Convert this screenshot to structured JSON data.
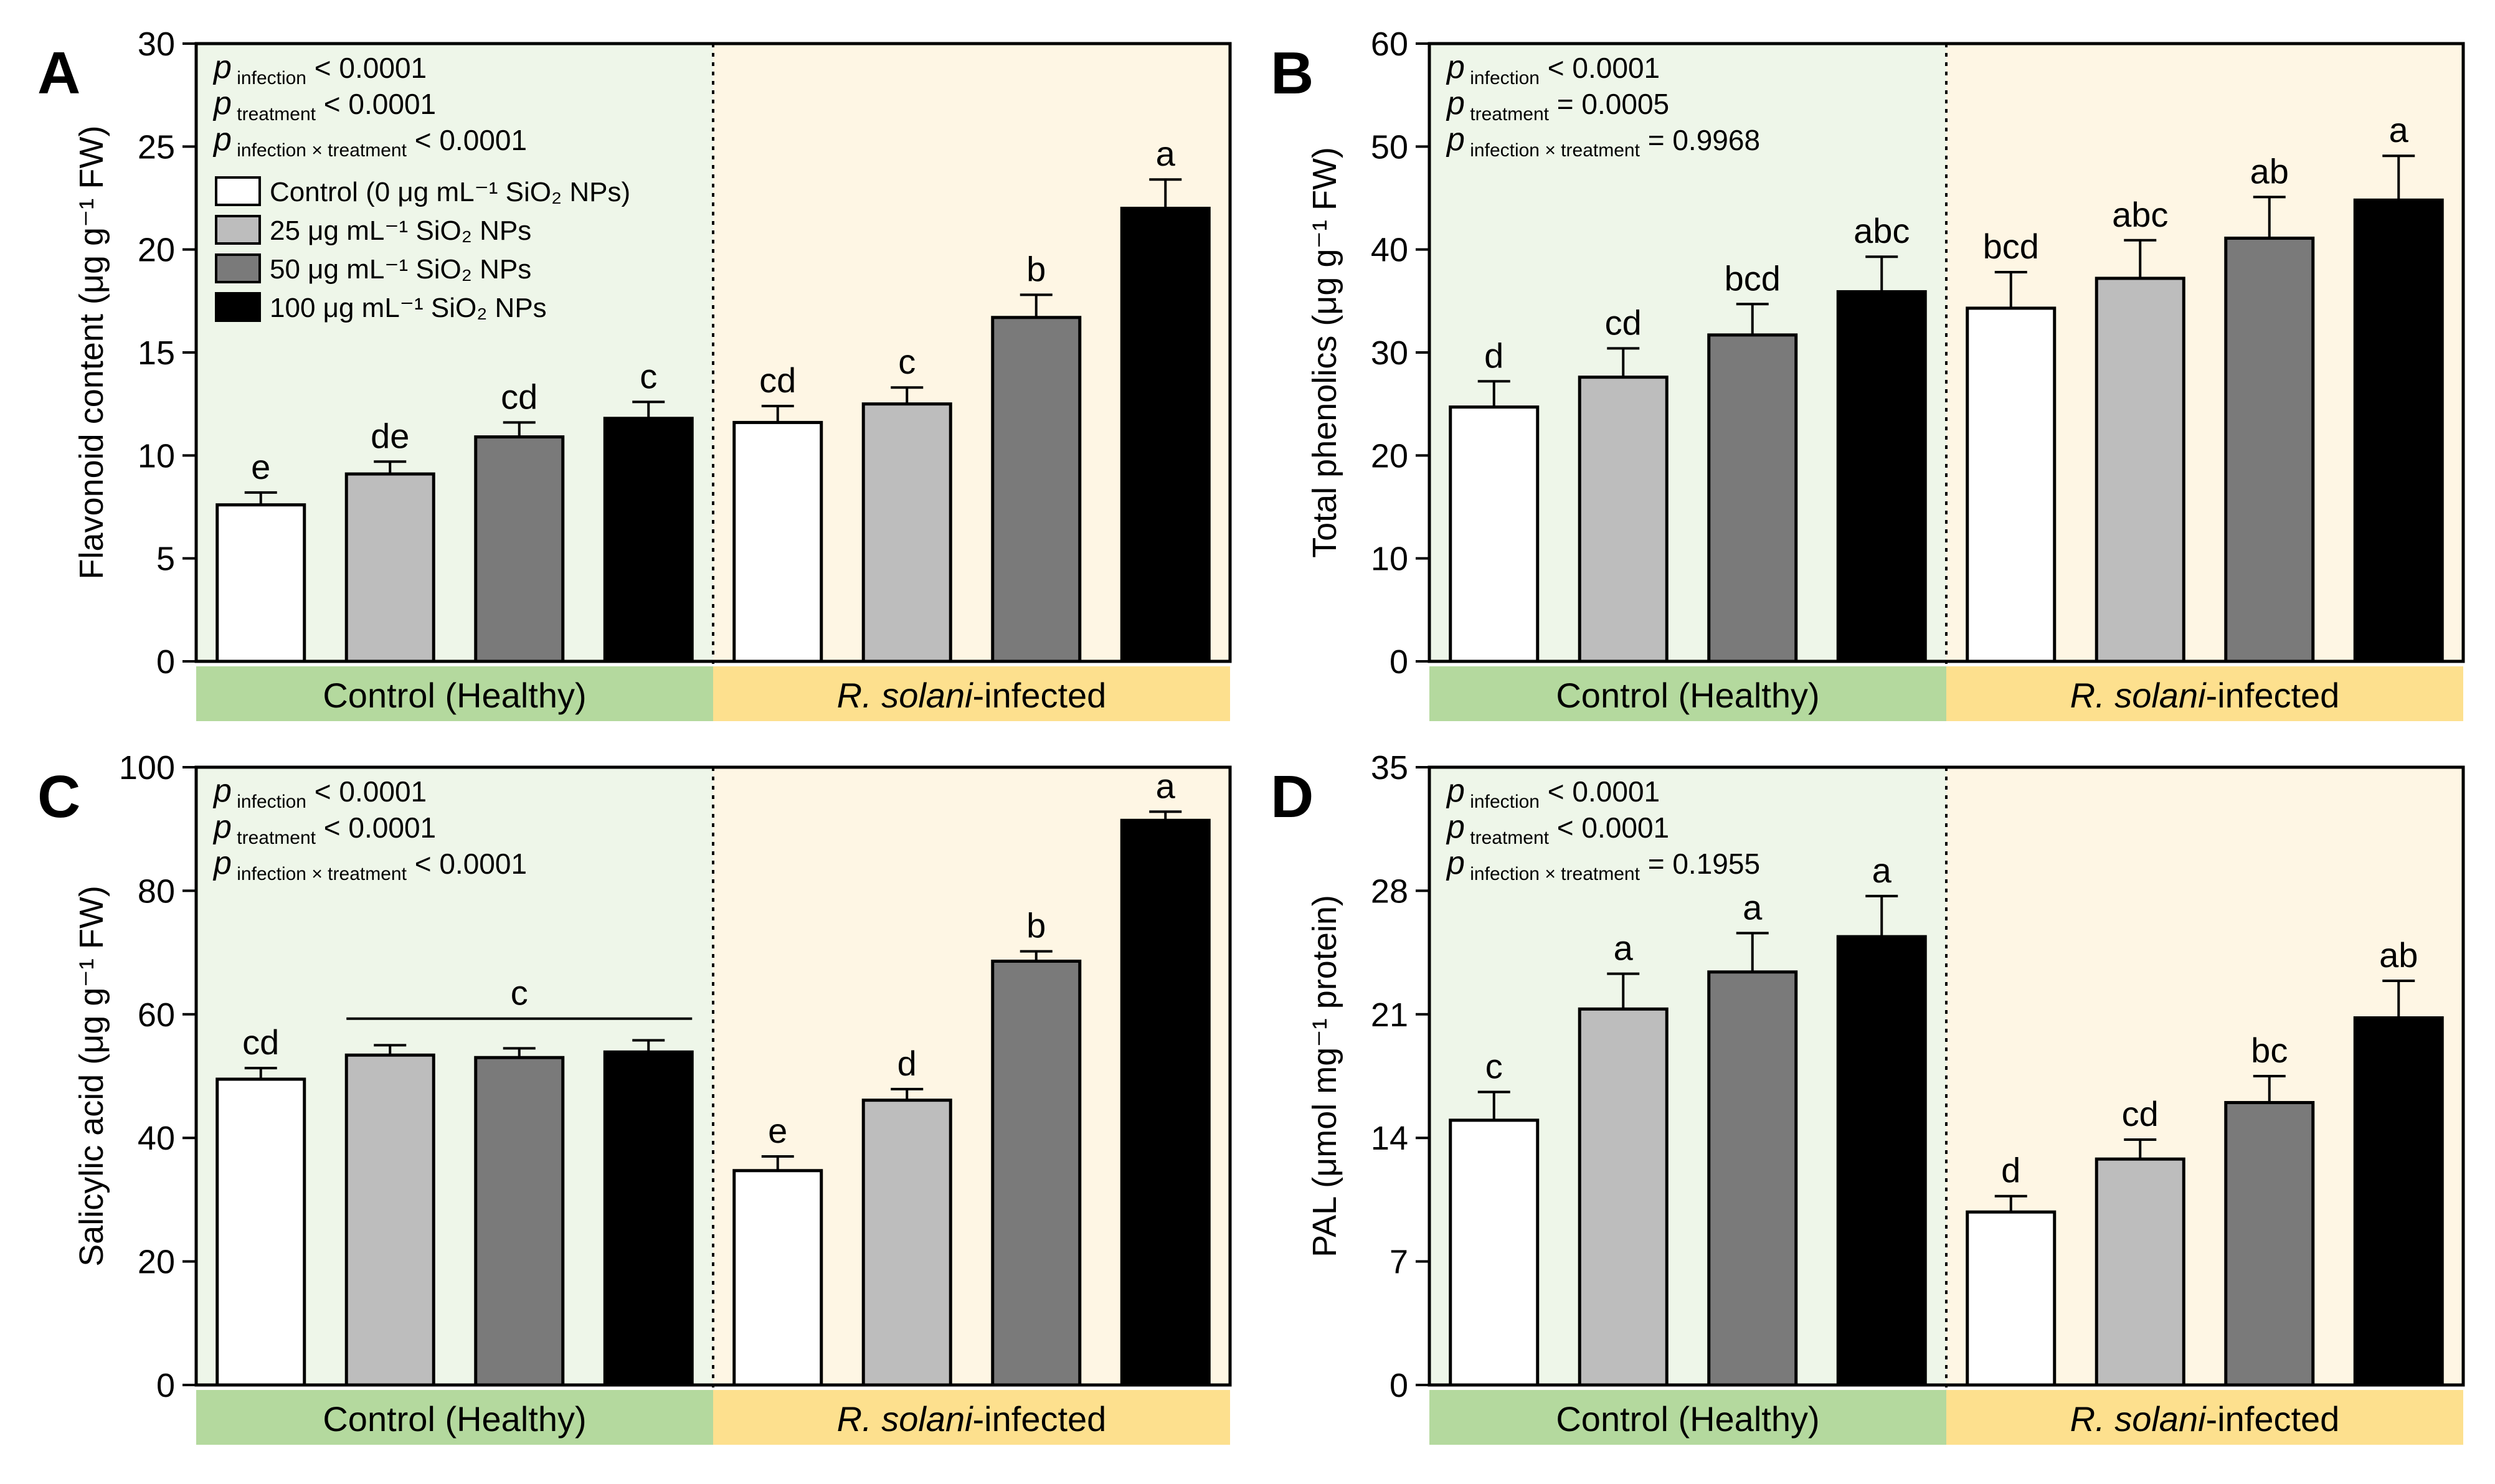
{
  "legend": {
    "items": [
      {
        "label": "Control (0 μg mL⁻¹ SiO₂ NPs)",
        "color": "#ffffff"
      },
      {
        "label": "25 μg mL⁻¹ SiO₂ NPs",
        "color": "#bdbdbd"
      },
      {
        "label": "50 μg mL⁻¹ SiO₂ NPs",
        "color": "#7a7a7a"
      },
      {
        "label": "100 μg mL⁻¹ SiO₂ NPs",
        "color": "#000000"
      }
    ]
  },
  "colors": {
    "healthy_bg": "#eef6e9",
    "infected_bg": "#fef6e4",
    "healthy_band": "#b4d99e",
    "infected_band": "#fde08e"
  },
  "chart_data": [
    {
      "panel": "A",
      "type": "bar",
      "ylabel": "Flavonoid content (μg g⁻¹ FW)",
      "ylim": [
        0,
        30
      ],
      "yticks": [
        "0",
        "5",
        "10",
        "15",
        "20",
        "25",
        "30"
      ],
      "groups": [
        "Control (Healthy)",
        "R. solani-infected"
      ],
      "stats": [
        {
          "sub": "infection",
          "value": "< 0.0001"
        },
        {
          "sub": "treatment",
          "value": "< 0.0001"
        },
        {
          "sub": "infection × treatment",
          "value": "< 0.0001"
        }
      ],
      "show_legend": true,
      "values": [
        7.6,
        9.1,
        10.9,
        11.8,
        11.6,
        12.5,
        16.7,
        22.0
      ],
      "errors": [
        0.6,
        0.6,
        0.7,
        0.8,
        0.8,
        0.8,
        1.1,
        1.4
      ],
      "letters": [
        "e",
        "de",
        "cd",
        "c",
        "cd",
        "c",
        "b",
        "a"
      ],
      "bracket": null
    },
    {
      "panel": "B",
      "type": "bar",
      "ylabel": "Total phenolics (μg g⁻¹ FW)",
      "ylim": [
        0,
        60
      ],
      "yticks": [
        "0",
        "10",
        "20",
        "30",
        "40",
        "50",
        "60"
      ],
      "groups": [
        "Control (Healthy)",
        "R. solani-infected"
      ],
      "stats": [
        {
          "sub": "infection",
          "value": "< 0.0001"
        },
        {
          "sub": "treatment",
          "value": "= 0.0005"
        },
        {
          "sub": "infection × treatment",
          "value": "= 0.9968"
        }
      ],
      "show_legend": false,
      "values": [
        24.7,
        27.6,
        31.7,
        35.9,
        34.3,
        37.2,
        41.1,
        44.8
      ],
      "errors": [
        2.5,
        2.8,
        3.0,
        3.4,
        3.5,
        3.7,
        4.0,
        4.3
      ],
      "letters": [
        "d",
        "cd",
        "bcd",
        "abc",
        "bcd",
        "abc",
        "ab",
        "a"
      ],
      "bracket": null
    },
    {
      "panel": "C",
      "type": "bar",
      "ylabel": "Salicylic acid (μg g⁻¹ FW)",
      "ylim": [
        0,
        100
      ],
      "yticks": [
        "0",
        "20",
        "40",
        "60",
        "80",
        "100"
      ],
      "groups": [
        "Control (Healthy)",
        "R. solani-infected"
      ],
      "stats": [
        {
          "sub": "infection",
          "value": "< 0.0001"
        },
        {
          "sub": "treatment",
          "value": "< 0.0001"
        },
        {
          "sub": "infection × treatment",
          "value": "< 0.0001"
        }
      ],
      "show_legend": false,
      "values": [
        49.5,
        53.4,
        53.0,
        53.9,
        34.7,
        46.1,
        68.6,
        91.4
      ],
      "errors": [
        1.8,
        1.6,
        1.5,
        1.9,
        2.3,
        1.8,
        1.6,
        1.4
      ],
      "letters": [
        "cd",
        "",
        "",
        "",
        "e",
        "d",
        "b",
        "a"
      ],
      "bracket": {
        "from": 1,
        "to": 3,
        "value": 59.3,
        "letter": "c"
      }
    },
    {
      "panel": "D",
      "type": "bar",
      "ylabel": "PAL (μmol mg⁻¹ protein)",
      "ylim": [
        0,
        35
      ],
      "yticks": [
        "0",
        "7",
        "14",
        "21",
        "28",
        "35"
      ],
      "groups": [
        "Control (Healthy)",
        "R. solani-infected"
      ],
      "stats": [
        {
          "sub": "infection",
          "value": "< 0.0001"
        },
        {
          "sub": "treatment",
          "value": "< 0.0001"
        },
        {
          "sub": "infection × treatment",
          "value": "= 0.1955"
        }
      ],
      "show_legend": false,
      "values": [
        15.0,
        21.3,
        23.4,
        25.4,
        9.8,
        12.8,
        16.0,
        20.8
      ],
      "errors": [
        1.6,
        2.0,
        2.2,
        2.3,
        0.9,
        1.1,
        1.5,
        2.1
      ],
      "letters": [
        "c",
        "a",
        "a",
        "a",
        "d",
        "cd",
        "bc",
        "ab"
      ],
      "bracket": null
    }
  ]
}
